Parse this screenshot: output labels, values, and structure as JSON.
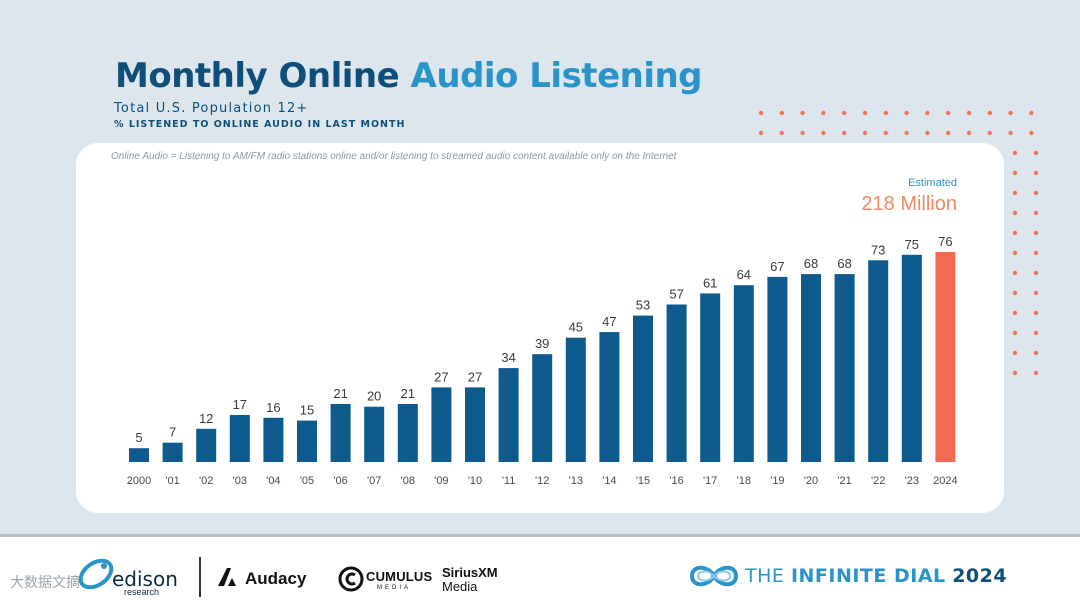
{
  "header": {
    "title_part1": "Monthly Online",
    "title_part2": "Audio Listening",
    "subtitle": "Total U.S. Population 12+",
    "subtitle2": "% LISTENED TO ONLINE AUDIO IN LAST MONTH"
  },
  "note": "Online Audio = Listening to AM/FM radio stations online and/or listening to streamed audio content available only on the Internet",
  "callout": {
    "estimated": "Estimated",
    "value": "218 Million"
  },
  "colors": {
    "bar": "#0e5a8c",
    "highlight": "#f26a4f",
    "dots": "#f07458"
  },
  "chart_data": {
    "type": "bar",
    "categories": [
      "2000",
      "'01",
      "'02",
      "'03",
      "'04",
      "'05",
      "'06",
      "'07",
      "'08",
      "'09",
      "'10",
      "'11",
      "'12",
      "'13",
      "'14",
      "'15",
      "'16",
      "'17",
      "'18",
      "'19",
      "'20",
      "'21",
      "'22",
      "'23",
      "2024"
    ],
    "values": [
      5,
      7,
      12,
      17,
      16,
      15,
      21,
      20,
      21,
      27,
      27,
      34,
      39,
      45,
      47,
      53,
      57,
      61,
      64,
      67,
      68,
      68,
      73,
      75,
      76
    ],
    "highlight_index": 24,
    "ylim": [
      0,
      80
    ],
    "grid": false,
    "legend": "none"
  },
  "footer": {
    "edison": "edison",
    "edison_sub": "research",
    "audacy": "Audacy",
    "cumulus": "CUMULUS",
    "cumulus_sub": "MEDIA",
    "sirius": "SiriusXM",
    "sirius_sub": "Media",
    "dial_the": "THE ",
    "dial_infinite": "INFINITE DIAL",
    "dial_year": "2024",
    "watermark": "大数据文摘"
  }
}
